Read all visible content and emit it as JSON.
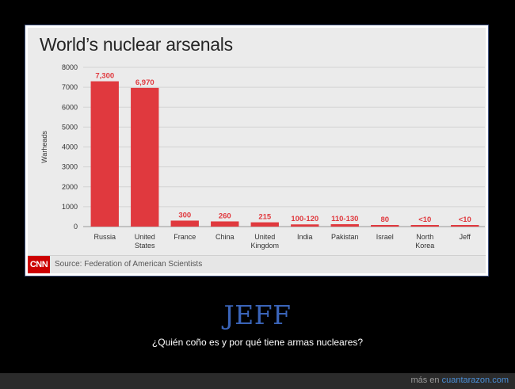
{
  "chart_data": {
    "type": "bar",
    "title": "World’s nuclear arsenals",
    "ylabel": "Warheads",
    "xlabel": "",
    "ylim": [
      0,
      8000
    ],
    "yticks": [
      0,
      1000,
      2000,
      3000,
      4000,
      5000,
      6000,
      7000,
      8000
    ],
    "grid": true,
    "bar_color": "#e0393e",
    "categories": [
      [
        "Russia"
      ],
      [
        "United",
        "States"
      ],
      [
        "France"
      ],
      [
        "China"
      ],
      [
        "United",
        "Kingdom"
      ],
      [
        "India"
      ],
      [
        "Pakistan"
      ],
      [
        "Israel"
      ],
      [
        "North",
        "Korea"
      ],
      [
        "Jeff"
      ]
    ],
    "values": [
      7300,
      6970,
      300,
      260,
      215,
      110,
      120,
      80,
      10,
      10
    ],
    "data_labels": [
      "7,300",
      "6,970",
      "300",
      "260",
      "215",
      "100-120",
      "110-130",
      "80",
      "<10",
      "<10"
    ],
    "source": "Source: Federation of American Scientists"
  },
  "logo": {
    "text": "CNN",
    "color": "#cc0000"
  },
  "caption": {
    "title": "JEFF",
    "subtitle": "¿Quién coño es y por qué tiene armas nucleares?"
  },
  "footer_bar": {
    "prefix": "más en ",
    "site": "cuantarazon.com"
  }
}
